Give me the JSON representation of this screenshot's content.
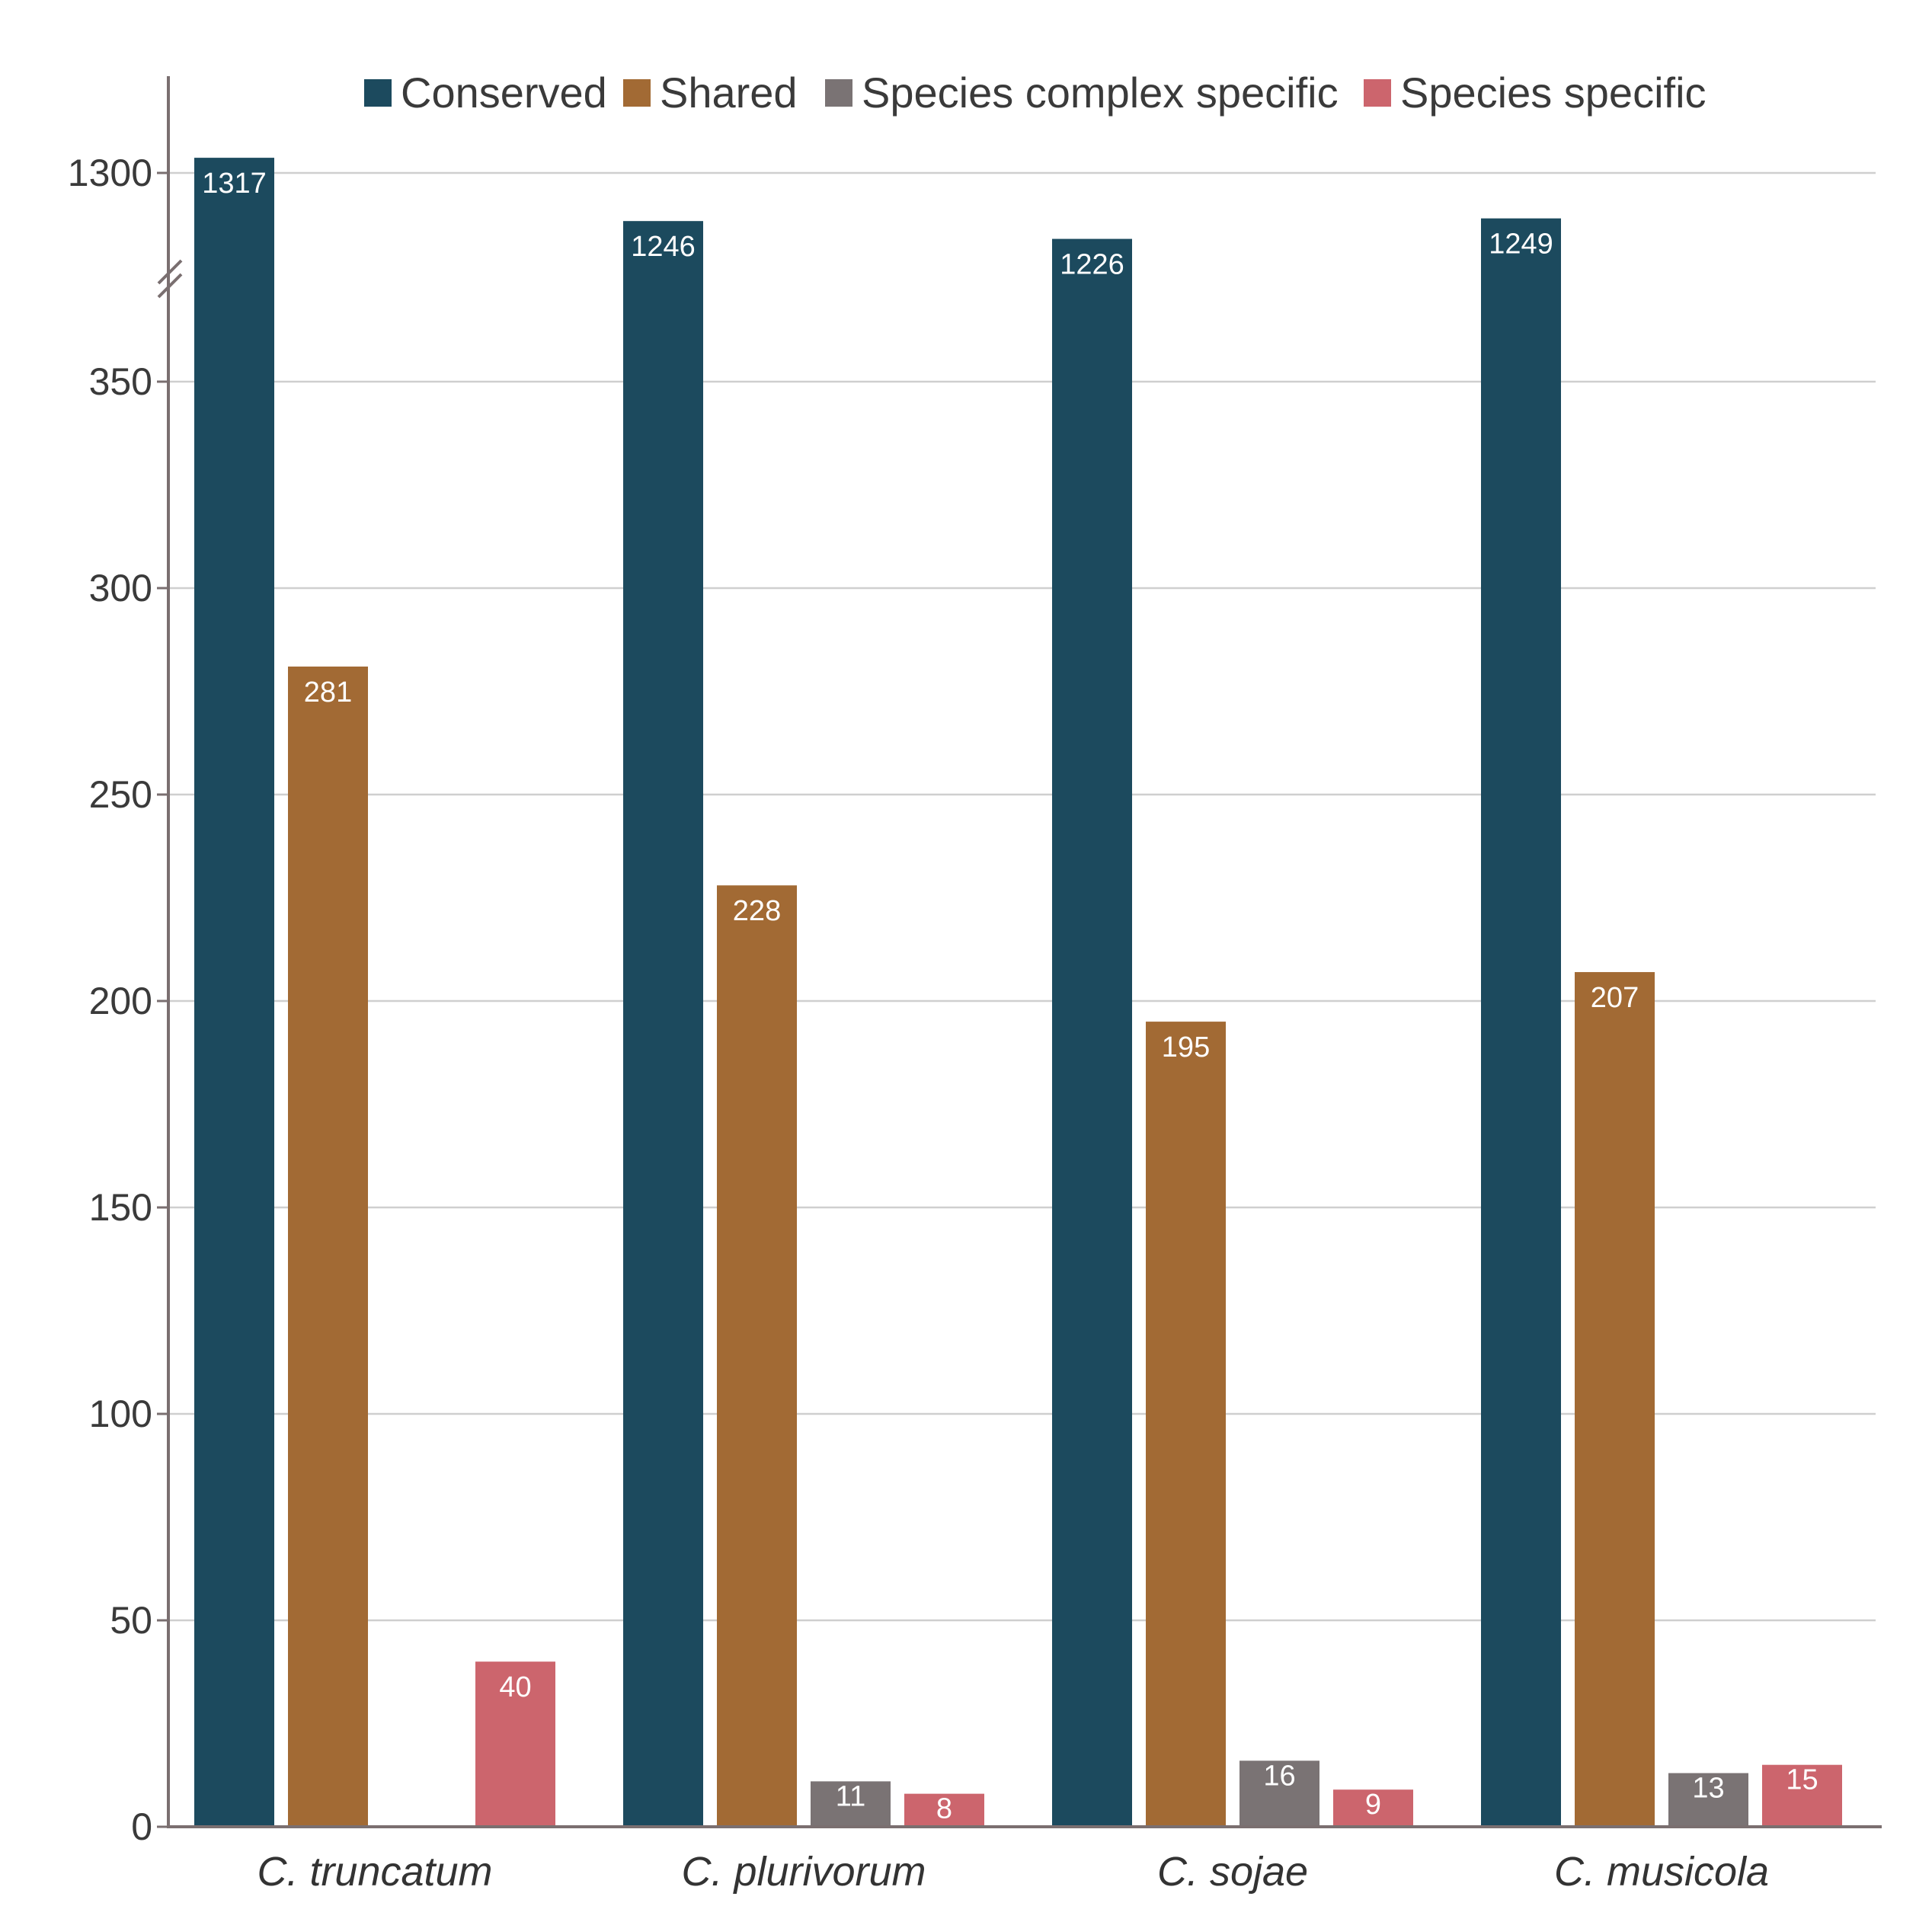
{
  "chart_data": {
    "type": "bar",
    "categories": [
      "C. truncatum",
      "C. plurivorum",
      "C. sojae",
      "C. musicola"
    ],
    "series": [
      {
        "name": "Conserved",
        "color": "#1c4a5e",
        "values": [
          1317,
          1246,
          1226,
          1249
        ]
      },
      {
        "name": "Shared",
        "color": "#a26a34",
        "values": [
          281,
          228,
          195,
          207
        ]
      },
      {
        "name": "Species complex specific",
        "color": "#7a7374",
        "values": [
          null,
          11,
          16,
          13
        ]
      },
      {
        "name": "Species specific",
        "color": "#cc656d",
        "values": [
          40,
          8,
          9,
          15
        ]
      }
    ],
    "y_ticks": [
      "0",
      "50",
      "100",
      "150",
      "200",
      "250",
      "300",
      "350",
      "1300"
    ],
    "ylim": [
      0,
      1320
    ],
    "axis_break": {
      "lower_max": 400,
      "upper_min": 1200
    },
    "grid": true,
    "legend_position": "top",
    "title": "",
    "xlabel": "",
    "ylabel": ""
  }
}
